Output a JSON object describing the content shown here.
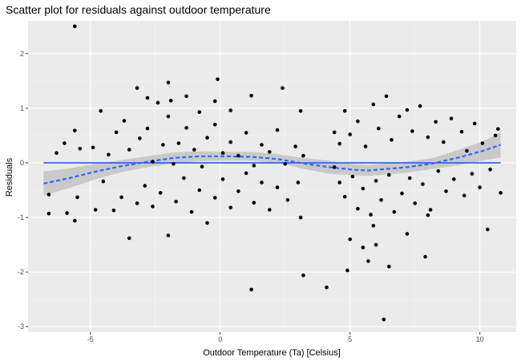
{
  "chart_data": {
    "type": "scatter",
    "title": "Scatter plot for residuals against outdoor temperature",
    "xlabel": "Outdoor Temperature (Ta) [Celsius]",
    "ylabel": "Residuals",
    "xlim": [
      -7.4,
      11.4
    ],
    "ylim": [
      -3.1,
      2.6
    ],
    "x_ticks": [
      -5,
      0,
      5,
      10
    ],
    "x_tick_labels": [
      "-5",
      "0",
      "5",
      "10"
    ],
    "y_ticks": [
      -3,
      -2,
      -1,
      0,
      1,
      2
    ],
    "y_tick_labels": [
      "-3",
      "-2",
      "-1",
      "0",
      "1",
      "2"
    ],
    "grid": true,
    "legend": "none",
    "colors": {
      "panel": "#ebebeb",
      "grid_major": "#ffffff",
      "grid_minor": "#f5f5f5",
      "points": "#000000",
      "linear_fit": "#3366ff",
      "smooth_fit": "#3366ff",
      "confidence_band": "#bdbdbd"
    },
    "points": [
      [
        -5.6,
        2.5
      ],
      [
        -2.0,
        1.47
      ],
      [
        -0.1,
        1.53
      ],
      [
        -4.6,
        0.95
      ],
      [
        -3.2,
        1.37
      ],
      [
        -2.8,
        1.19
      ],
      [
        -2.4,
        1.1
      ],
      [
        -1.9,
        1.14
      ],
      [
        -1.3,
        1.22
      ],
      [
        -0.8,
        0.93
      ],
      [
        -0.2,
        1.13
      ],
      [
        0.4,
        0.96
      ],
      [
        1.2,
        1.23
      ],
      [
        2.4,
        1.37
      ],
      [
        3.1,
        0.95
      ],
      [
        -6.0,
        0.36
      ],
      [
        -6.3,
        0.18
      ],
      [
        -5.6,
        0.59
      ],
      [
        -5.4,
        0.26
      ],
      [
        -4.9,
        0.28
      ],
      [
        -4.3,
        0.15
      ],
      [
        -4.0,
        0.56
      ],
      [
        -3.7,
        0.77
      ],
      [
        -3.5,
        0.24
      ],
      [
        -3.1,
        0.45
      ],
      [
        -2.8,
        0.63
      ],
      [
        -2.6,
        0.02
      ],
      [
        -2.2,
        0.33
      ],
      [
        -2.0,
        0.85
      ],
      [
        -1.8,
        -0.02
      ],
      [
        -1.6,
        0.36
      ],
      [
        -1.3,
        0.64
      ],
      [
        -1.0,
        0.24
      ],
      [
        -0.7,
        -0.07
      ],
      [
        -0.5,
        0.46
      ],
      [
        -0.2,
        0.7
      ],
      [
        0.1,
        0.18
      ],
      [
        0.4,
        0.38
      ],
      [
        0.7,
        0.13
      ],
      [
        1.0,
        0.55
      ],
      [
        1.3,
        -0.05
      ],
      [
        1.6,
        0.33
      ],
      [
        1.9,
        0.2
      ],
      [
        2.2,
        0.6
      ],
      [
        2.5,
        -0.02
      ],
      [
        2.9,
        0.3
      ],
      [
        3.2,
        0.13
      ],
      [
        -6.6,
        -0.93
      ],
      [
        -6.6,
        -0.58
      ],
      [
        -5.9,
        -0.92
      ],
      [
        -5.5,
        -0.63
      ],
      [
        -5.6,
        -1.06
      ],
      [
        -4.8,
        -0.86
      ],
      [
        -4.5,
        -0.34
      ],
      [
        -4.1,
        -0.87
      ],
      [
        -3.8,
        -0.63
      ],
      [
        -3.5,
        -1.38
      ],
      [
        -3.2,
        -0.74
      ],
      [
        -2.9,
        -0.42
      ],
      [
        -2.6,
        -0.8
      ],
      [
        -2.3,
        -0.55
      ],
      [
        -2.0,
        -1.33
      ],
      [
        -1.7,
        -0.71
      ],
      [
        -1.4,
        -0.28
      ],
      [
        -1.1,
        -0.9
      ],
      [
        -0.8,
        -0.5
      ],
      [
        -0.5,
        -1.1
      ],
      [
        -0.2,
        -0.64
      ],
      [
        0.1,
        -0.3
      ],
      [
        0.4,
        -0.82
      ],
      [
        0.7,
        -0.52
      ],
      [
        1.0,
        -0.19
      ],
      [
        1.3,
        -0.73
      ],
      [
        1.6,
        -0.36
      ],
      [
        1.9,
        -0.86
      ],
      [
        2.2,
        -0.45
      ],
      [
        2.6,
        -0.68
      ],
      [
        3.0,
        -0.36
      ],
      [
        3.1,
        -1.0
      ],
      [
        1.2,
        -2.32
      ],
      [
        3.2,
        -2.06
      ],
      [
        4.1,
        -2.28
      ],
      [
        6.3,
        -2.87
      ],
      [
        4.9,
        -1.97
      ],
      [
        5.5,
        -1.55
      ],
      [
        5.7,
        -1.8
      ],
      [
        6.0,
        -1.5
      ],
      [
        6.5,
        -1.9
      ],
      [
        5.0,
        -1.4
      ],
      [
        5.9,
        -1.15
      ],
      [
        7.2,
        -1.3
      ],
      [
        7.9,
        -1.72
      ],
      [
        8.0,
        -0.96
      ],
      [
        10.3,
        -1.22
      ],
      [
        4.4,
        0.56
      ],
      [
        4.6,
        0.35
      ],
      [
        4.8,
        0.95
      ],
      [
        5.0,
        0.52
      ],
      [
        5.3,
        0.76
      ],
      [
        5.6,
        0.3
      ],
      [
        5.9,
        1.07
      ],
      [
        6.1,
        0.63
      ],
      [
        6.4,
        1.22
      ],
      [
        6.6,
        0.42
      ],
      [
        6.9,
        0.85
      ],
      [
        7.2,
        0.97
      ],
      [
        7.4,
        0.58
      ],
      [
        7.7,
        1.04
      ],
      [
        8.0,
        0.47
      ],
      [
        8.3,
        0.75
      ],
      [
        8.6,
        0.38
      ],
      [
        8.9,
        0.81
      ],
      [
        9.3,
        0.57
      ],
      [
        9.5,
        0.22
      ],
      [
        9.8,
        0.72
      ],
      [
        10.1,
        0.36
      ],
      [
        10.6,
        0.5
      ],
      [
        10.7,
        0.62
      ],
      [
        4.4,
        -0.08
      ],
      [
        4.6,
        -0.36
      ],
      [
        4.8,
        -0.62
      ],
      [
        5.1,
        -0.25
      ],
      [
        5.3,
        -0.84
      ],
      [
        5.5,
        -0.47
      ],
      [
        5.8,
        -0.95
      ],
      [
        6.0,
        -0.33
      ],
      [
        6.2,
        -0.68
      ],
      [
        6.5,
        -0.22
      ],
      [
        6.7,
        -0.9
      ],
      [
        7.0,
        -0.56
      ],
      [
        7.3,
        -0.28
      ],
      [
        7.5,
        -0.74
      ],
      [
        7.8,
        -0.39
      ],
      [
        8.1,
        -0.86
      ],
      [
        8.4,
        -0.15
      ],
      [
        8.7,
        -0.52
      ],
      [
        9.0,
        -0.3
      ],
      [
        9.4,
        -0.6
      ],
      [
        9.7,
        -0.2
      ],
      [
        10.0,
        -0.45
      ],
      [
        10.4,
        -0.12
      ],
      [
        10.8,
        -0.55
      ]
    ],
    "linear_fit": [
      [
        -6.8,
        0.0
      ],
      [
        10.8,
        0.0
      ]
    ],
    "smooth_fit": [
      [
        -6.8,
        -0.38
      ],
      [
        -5.8,
        -0.28
      ],
      [
        -4.8,
        -0.16
      ],
      [
        -3.8,
        -0.06
      ],
      [
        -2.8,
        0.02
      ],
      [
        -1.8,
        0.09
      ],
      [
        -0.8,
        0.12
      ],
      [
        0.2,
        0.12
      ],
      [
        1.2,
        0.11
      ],
      [
        2.2,
        0.07
      ],
      [
        3.2,
        -0.01
      ],
      [
        4.2,
        -0.08
      ],
      [
        5.2,
        -0.13
      ],
      [
        5.7,
        -0.14
      ],
      [
        6.2,
        -0.12
      ],
      [
        7.2,
        -0.08
      ],
      [
        8.2,
        -0.01
      ],
      [
        9.2,
        0.1
      ],
      [
        10.2,
        0.23
      ],
      [
        10.8,
        0.33
      ]
    ],
    "confidence_band": [
      [
        -6.8,
        -0.6,
        -0.16
      ],
      [
        -5.8,
        -0.46,
        -0.1
      ],
      [
        -4.8,
        -0.3,
        -0.02
      ],
      [
        -3.8,
        -0.17,
        0.05
      ],
      [
        -2.8,
        -0.08,
        0.12
      ],
      [
        -1.8,
        -0.01,
        0.19
      ],
      [
        -0.8,
        0.03,
        0.21
      ],
      [
        0.2,
        0.04,
        0.2
      ],
      [
        1.2,
        0.04,
        0.2
      ],
      [
        2.2,
        0.0,
        0.16
      ],
      [
        3.2,
        -0.11,
        0.09
      ],
      [
        4.2,
        -0.2,
        0.04
      ],
      [
        5.2,
        -0.23,
        -0.03
      ],
      [
        5.7,
        -0.24,
        -0.04
      ],
      [
        6.2,
        -0.22,
        -0.02
      ],
      [
        7.2,
        -0.18,
        0.02
      ],
      [
        8.2,
        -0.11,
        0.09
      ],
      [
        9.2,
        -0.04,
        0.24
      ],
      [
        10.2,
        0.05,
        0.41
      ],
      [
        10.8,
        0.1,
        0.56
      ]
    ]
  }
}
